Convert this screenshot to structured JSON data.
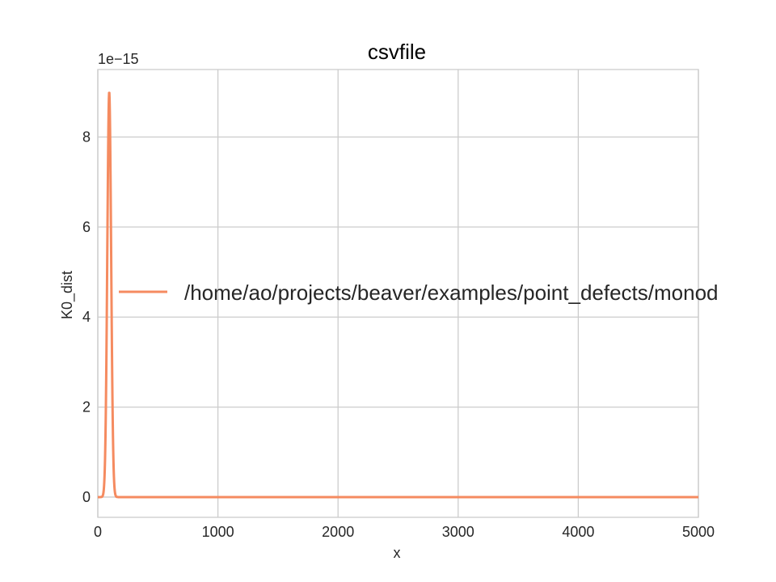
{
  "chart_data": {
    "type": "line",
    "title": "csvfile",
    "xlabel": "x",
    "ylabel": "K0_dist",
    "y_offset_label": "1e−15",
    "xlim": [
      0,
      5000
    ],
    "ylim": [
      -0.45,
      9.5
    ],
    "x_ticks": [
      0,
      1000,
      2000,
      3000,
      4000,
      5000
    ],
    "y_ticks": [
      0,
      2,
      4,
      6,
      8
    ],
    "grid": true,
    "legend_placement": "center-left",
    "series": [
      {
        "name": "/home/ao/projects/beaver/examples/point_defects/monod",
        "color": "#f58b60",
        "peak_center": 95,
        "peak_height": 9.0,
        "peak_sigma": 16,
        "x_max": 5000
      }
    ]
  }
}
